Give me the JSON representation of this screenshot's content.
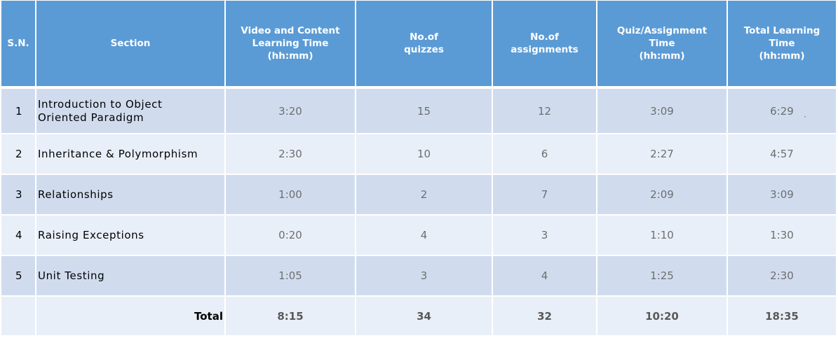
{
  "headers": {
    "sn": "S.N.",
    "section": "Section",
    "video_line1": "Video and Content",
    "video_line2": "Learning Time",
    "video_line3": "(hh:mm)",
    "quizzes_line1": "No.of",
    "quizzes_line2": "quizzes",
    "assignments_line1": "No.of",
    "assignments_line2": "assignments",
    "qa_line1": "Quiz/Assignment",
    "qa_line2": "Time",
    "qa_line3": "(hh:mm)",
    "total_line1": "Total Learning",
    "total_line2": "Time",
    "total_line3": "(hh:mm)"
  },
  "rows": [
    {
      "sn": "1",
      "section_line1": "Introduction to Object",
      "section_line2": "Oriented Paradigm",
      "video": "3:20",
      "quizzes": "15",
      "assignments": "12",
      "qa_time": "3:09",
      "total": "6:29"
    },
    {
      "sn": "2",
      "section": "Inheritance & Polymorphism",
      "video": "2:30",
      "quizzes": "10",
      "assignments": "6",
      "qa_time": "2:27",
      "total": "4:57"
    },
    {
      "sn": "3",
      "section": "Relationships",
      "video": "1:00",
      "quizzes": "2",
      "assignments": "7",
      "qa_time": "2:09",
      "total": "3:09"
    },
    {
      "sn": "4",
      "section": "Raising Exceptions",
      "video": "0:20",
      "quizzes": "4",
      "assignments": "3",
      "qa_time": "1:10",
      "total": "1:30"
    },
    {
      "sn": "5",
      "section": "Unit Testing",
      "video": "1:05",
      "quizzes": "3",
      "assignments": "4",
      "qa_time": "1:25",
      "total": "2:30"
    }
  ],
  "totals": {
    "label": "Total",
    "video": "8:15",
    "quizzes": "34",
    "assignments": "32",
    "qa_time": "10:20",
    "total": "18:35"
  },
  "colors": {
    "header_bg": "#5b9bd5",
    "row_dark": "#d0dcee",
    "row_light": "#e9eff8"
  }
}
